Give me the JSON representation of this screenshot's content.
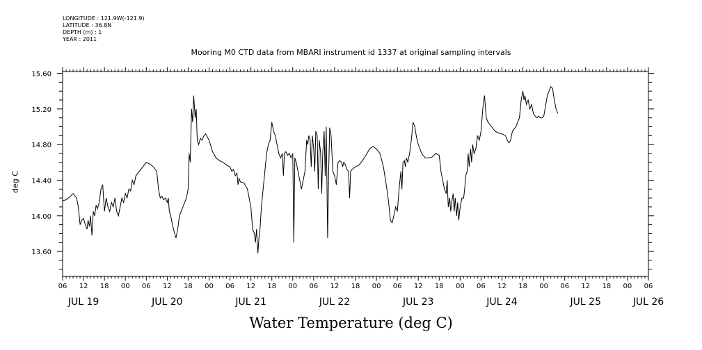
{
  "header": {
    "longitude": "LONGITUDE : 121.9W(-121.9)",
    "latitude": "LATITUDE : 36.8N",
    "depth": "DEPTH (m) : 1",
    "year": "YEAR : 2011"
  },
  "chart_data": {
    "type": "line",
    "title": "Mooring M0 CTD data from MBARI instrument id 1337 at original sampling intervals",
    "xlabel": "Water Temperature (deg C)",
    "ylabel": "deg C",
    "xlim_hours": [
      0,
      168
    ],
    "ylim": [
      13.32,
      15.62
    ],
    "y_ticks": [
      "13.60",
      "14.00",
      "14.40",
      "14.80",
      "15.20",
      "15.60"
    ],
    "y_tick_values": [
      13.6,
      14.0,
      14.4,
      14.8,
      15.2,
      15.6
    ],
    "hour_tick_labels": [
      "06",
      "12",
      "18",
      "00",
      "06",
      "12",
      "18",
      "00",
      "06",
      "12",
      "18",
      "00",
      "06",
      "12",
      "18",
      "00",
      "06",
      "12",
      "18",
      "00",
      "06",
      "12",
      "18",
      "00",
      "06",
      "12",
      "18",
      "00",
      "06"
    ],
    "day_labels": [
      {
        "label": "JUL 19",
        "hour": 6
      },
      {
        "label": "JUL 20",
        "hour": 30
      },
      {
        "label": "JUL 21",
        "hour": 54
      },
      {
        "label": "JUL 22",
        "hour": 78
      },
      {
        "label": "JUL 23",
        "hour": 102
      },
      {
        "label": "JUL 24",
        "hour": 126
      },
      {
        "label": "JUL 25",
        "hour": 150
      },
      {
        "label": "JUL 26",
        "hour": 168
      }
    ],
    "grid": false,
    "series": [
      {
        "points": [
          [
            0,
            14.17
          ],
          [
            1,
            14.18
          ],
          [
            2,
            14.21
          ],
          [
            3,
            14.25
          ],
          [
            4,
            14.2
          ],
          [
            4.5,
            14.1
          ],
          [
            5,
            13.9
          ],
          [
            5.5,
            13.95
          ],
          [
            6,
            13.97
          ],
          [
            6.5,
            13.9
          ],
          [
            7,
            13.85
          ],
          [
            7.3,
            13.95
          ],
          [
            7.7,
            13.88
          ],
          [
            8,
            14.0
          ],
          [
            8.4,
            13.78
          ],
          [
            8.8,
            14.05
          ],
          [
            9.2,
            14.0
          ],
          [
            9.6,
            14.12
          ],
          [
            10,
            14.08
          ],
          [
            10.5,
            14.15
          ],
          [
            11,
            14.3
          ],
          [
            11.5,
            14.35
          ],
          [
            12,
            14.05
          ],
          [
            12.5,
            14.2
          ],
          [
            13,
            14.1
          ],
          [
            13.5,
            14.05
          ],
          [
            14,
            14.15
          ],
          [
            14.5,
            14.1
          ],
          [
            15,
            14.2
          ],
          [
            15.5,
            14.05
          ],
          [
            16,
            14.0
          ],
          [
            16.5,
            14.1
          ],
          [
            17,
            14.2
          ],
          [
            17.5,
            14.15
          ],
          [
            18,
            14.25
          ],
          [
            18.5,
            14.2
          ],
          [
            19,
            14.3
          ],
          [
            19.5,
            14.28
          ],
          [
            20,
            14.4
          ],
          [
            20.5,
            14.35
          ],
          [
            21,
            14.45
          ],
          [
            22,
            14.5
          ],
          [
            23,
            14.55
          ],
          [
            24,
            14.6
          ],
          [
            25,
            14.58
          ],
          [
            26,
            14.55
          ],
          [
            27,
            14.5
          ],
          [
            27.5,
            14.3
          ],
          [
            28,
            14.2
          ],
          [
            28.5,
            14.22
          ],
          [
            29,
            14.18
          ],
          [
            29.5,
            14.2
          ],
          [
            30,
            14.15
          ],
          [
            30.3,
            14.2
          ],
          [
            30.6,
            14.05
          ],
          [
            31,
            14.0
          ],
          [
            31.5,
            13.9
          ],
          [
            32,
            13.82
          ],
          [
            32.5,
            13.75
          ],
          [
            33,
            13.85
          ],
          [
            33.5,
            14.0
          ],
          [
            34,
            14.05
          ],
          [
            34.5,
            14.1
          ],
          [
            35,
            14.15
          ],
          [
            35.5,
            14.2
          ],
          [
            36,
            14.3
          ],
          [
            36.3,
            14.7
          ],
          [
            36.6,
            14.6
          ],
          [
            37,
            15.2
          ],
          [
            37.3,
            15.05
          ],
          [
            37.6,
            15.35
          ],
          [
            38,
            15.1
          ],
          [
            38.3,
            15.2
          ],
          [
            38.6,
            14.85
          ],
          [
            39,
            14.8
          ],
          [
            39.5,
            14.87
          ],
          [
            40,
            14.85
          ],
          [
            40.5,
            14.9
          ],
          [
            41,
            14.92
          ],
          [
            42,
            14.85
          ],
          [
            43,
            14.72
          ],
          [
            44,
            14.65
          ],
          [
            45,
            14.62
          ],
          [
            46,
            14.6
          ],
          [
            47,
            14.57
          ],
          [
            48,
            14.55
          ],
          [
            48.5,
            14.5
          ],
          [
            49,
            14.52
          ],
          [
            49.5,
            14.45
          ],
          [
            50,
            14.48
          ],
          [
            50.3,
            14.35
          ],
          [
            50.6,
            14.42
          ],
          [
            51,
            14.38
          ],
          [
            52,
            14.37
          ],
          [
            53,
            14.3
          ],
          [
            54,
            14.1
          ],
          [
            54.5,
            13.85
          ],
          [
            55,
            13.8
          ],
          [
            55.3,
            13.7
          ],
          [
            55.6,
            13.85
          ],
          [
            56,
            13.58
          ],
          [
            56.3,
            13.75
          ],
          [
            56.6,
            13.85
          ],
          [
            57,
            14.1
          ],
          [
            57.5,
            14.3
          ],
          [
            58,
            14.5
          ],
          [
            58.5,
            14.7
          ],
          [
            59,
            14.8
          ],
          [
            59.5,
            14.85
          ],
          [
            60,
            15.05
          ],
          [
            60.5,
            14.95
          ],
          [
            61,
            14.9
          ],
          [
            61.5,
            14.8
          ],
          [
            62,
            14.7
          ],
          [
            62.5,
            14.65
          ],
          [
            63,
            14.7
          ],
          [
            63.3,
            14.45
          ],
          [
            63.6,
            14.7
          ],
          [
            64,
            14.72
          ],
          [
            64.5,
            14.68
          ],
          [
            65,
            14.7
          ],
          [
            65.5,
            14.65
          ],
          [
            66,
            14.7
          ],
          [
            66.3,
            13.7
          ],
          [
            66.6,
            14.65
          ],
          [
            67,
            14.6
          ],
          [
            67.5,
            14.5
          ],
          [
            68,
            14.4
          ],
          [
            68.5,
            14.3
          ],
          [
            69,
            14.4
          ],
          [
            69.5,
            14.5
          ],
          [
            70,
            14.85
          ],
          [
            70.3,
            14.8
          ],
          [
            70.6,
            14.9
          ],
          [
            71,
            14.85
          ],
          [
            71.3,
            14.55
          ],
          [
            71.6,
            14.9
          ],
          [
            72,
            14.75
          ],
          [
            72.3,
            14.5
          ],
          [
            72.6,
            14.95
          ],
          [
            73,
            14.9
          ],
          [
            73.3,
            14.3
          ],
          [
            73.6,
            14.85
          ],
          [
            74,
            14.7
          ],
          [
            74.3,
            14.25
          ],
          [
            74.6,
            14.7
          ],
          [
            75,
            14.95
          ],
          [
            75.3,
            14.45
          ],
          [
            75.6,
            15.0
          ],
          [
            76,
            13.75
          ],
          [
            76.3,
            14.5
          ],
          [
            76.6,
            14.99
          ],
          [
            77,
            14.9
          ],
          [
            77.5,
            14.5
          ],
          [
            78,
            14.45
          ],
          [
            78.5,
            14.35
          ],
          [
            79,
            14.6
          ],
          [
            79.5,
            14.62
          ],
          [
            80,
            14.6
          ],
          [
            80.3,
            14.55
          ],
          [
            80.6,
            14.6
          ],
          [
            81,
            14.58
          ],
          [
            81.5,
            14.52
          ],
          [
            82,
            14.5
          ],
          [
            82.3,
            14.2
          ],
          [
            82.6,
            14.5
          ],
          [
            83,
            14.52
          ],
          [
            84,
            14.55
          ],
          [
            85,
            14.57
          ],
          [
            86,
            14.62
          ],
          [
            87,
            14.68
          ],
          [
            88,
            14.75
          ],
          [
            89,
            14.78
          ],
          [
            90,
            14.75
          ],
          [
            91,
            14.7
          ],
          [
            92,
            14.55
          ],
          [
            93,
            14.3
          ],
          [
            93.5,
            14.15
          ],
          [
            94,
            13.95
          ],
          [
            94.5,
            13.92
          ],
          [
            95,
            14.0
          ],
          [
            95.5,
            14.1
          ],
          [
            96,
            14.05
          ],
          [
            96.5,
            14.3
          ],
          [
            97,
            14.5
          ],
          [
            97.3,
            14.3
          ],
          [
            97.6,
            14.6
          ],
          [
            98,
            14.62
          ],
          [
            98.3,
            14.55
          ],
          [
            98.6,
            14.65
          ],
          [
            99,
            14.6
          ],
          [
            99.5,
            14.7
          ],
          [
            100,
            14.85
          ],
          [
            100.5,
            15.05
          ],
          [
            101,
            15.0
          ],
          [
            101.5,
            14.88
          ],
          [
            102,
            14.8
          ],
          [
            102.5,
            14.75
          ],
          [
            103,
            14.7
          ],
          [
            104,
            14.65
          ],
          [
            105,
            14.65
          ],
          [
            106,
            14.66
          ],
          [
            107,
            14.7
          ],
          [
            108,
            14.68
          ],
          [
            108.5,
            14.5
          ],
          [
            109,
            14.4
          ],
          [
            109.5,
            14.3
          ],
          [
            110,
            14.25
          ],
          [
            110.3,
            14.4
          ],
          [
            110.6,
            14.1
          ],
          [
            111,
            14.2
          ],
          [
            111.3,
            14.05
          ],
          [
            111.6,
            14.15
          ],
          [
            112,
            14.25
          ],
          [
            112.3,
            14.05
          ],
          [
            112.6,
            14.2
          ],
          [
            113,
            14.0
          ],
          [
            113.3,
            14.15
          ],
          [
            113.6,
            13.95
          ],
          [
            114,
            14.1
          ],
          [
            114.5,
            14.2
          ],
          [
            115,
            14.2
          ],
          [
            115.3,
            14.3
          ],
          [
            115.6,
            14.45
          ],
          [
            116,
            14.5
          ],
          [
            116.3,
            14.7
          ],
          [
            116.6,
            14.55
          ],
          [
            117,
            14.75
          ],
          [
            117.3,
            14.6
          ],
          [
            117.6,
            14.8
          ],
          [
            118,
            14.7
          ],
          [
            118.5,
            14.75
          ],
          [
            119,
            14.9
          ],
          [
            119.5,
            14.85
          ],
          [
            120,
            14.95
          ],
          [
            120.5,
            15.2
          ],
          [
            121,
            15.35
          ],
          [
            121.5,
            15.1
          ],
          [
            122,
            15.05
          ],
          [
            123,
            15.0
          ],
          [
            124,
            14.95
          ],
          [
            125,
            14.93
          ],
          [
            126,
            14.92
          ],
          [
            127,
            14.9
          ],
          [
            127.5,
            14.85
          ],
          [
            128,
            14.82
          ],
          [
            128.5,
            14.85
          ],
          [
            129,
            14.95
          ],
          [
            130,
            15.0
          ],
          [
            131,
            15.1
          ],
          [
            131.5,
            15.3
          ],
          [
            132,
            15.4
          ],
          [
            132.3,
            15.3
          ],
          [
            132.6,
            15.35
          ],
          [
            133,
            15.25
          ],
          [
            133.5,
            15.3
          ],
          [
            134,
            15.2
          ],
          [
            134.5,
            15.25
          ],
          [
            135,
            15.15
          ],
          [
            135.5,
            15.12
          ],
          [
            136,
            15.1
          ],
          [
            136.5,
            15.12
          ],
          [
            137,
            15.1
          ],
          [
            137.5,
            15.1
          ],
          [
            138,
            15.12
          ],
          [
            139,
            15.35
          ],
          [
            140,
            15.45
          ],
          [
            140.5,
            15.43
          ],
          [
            141,
            15.3
          ],
          [
            141.5,
            15.2
          ],
          [
            142,
            15.15
          ]
        ]
      }
    ]
  }
}
